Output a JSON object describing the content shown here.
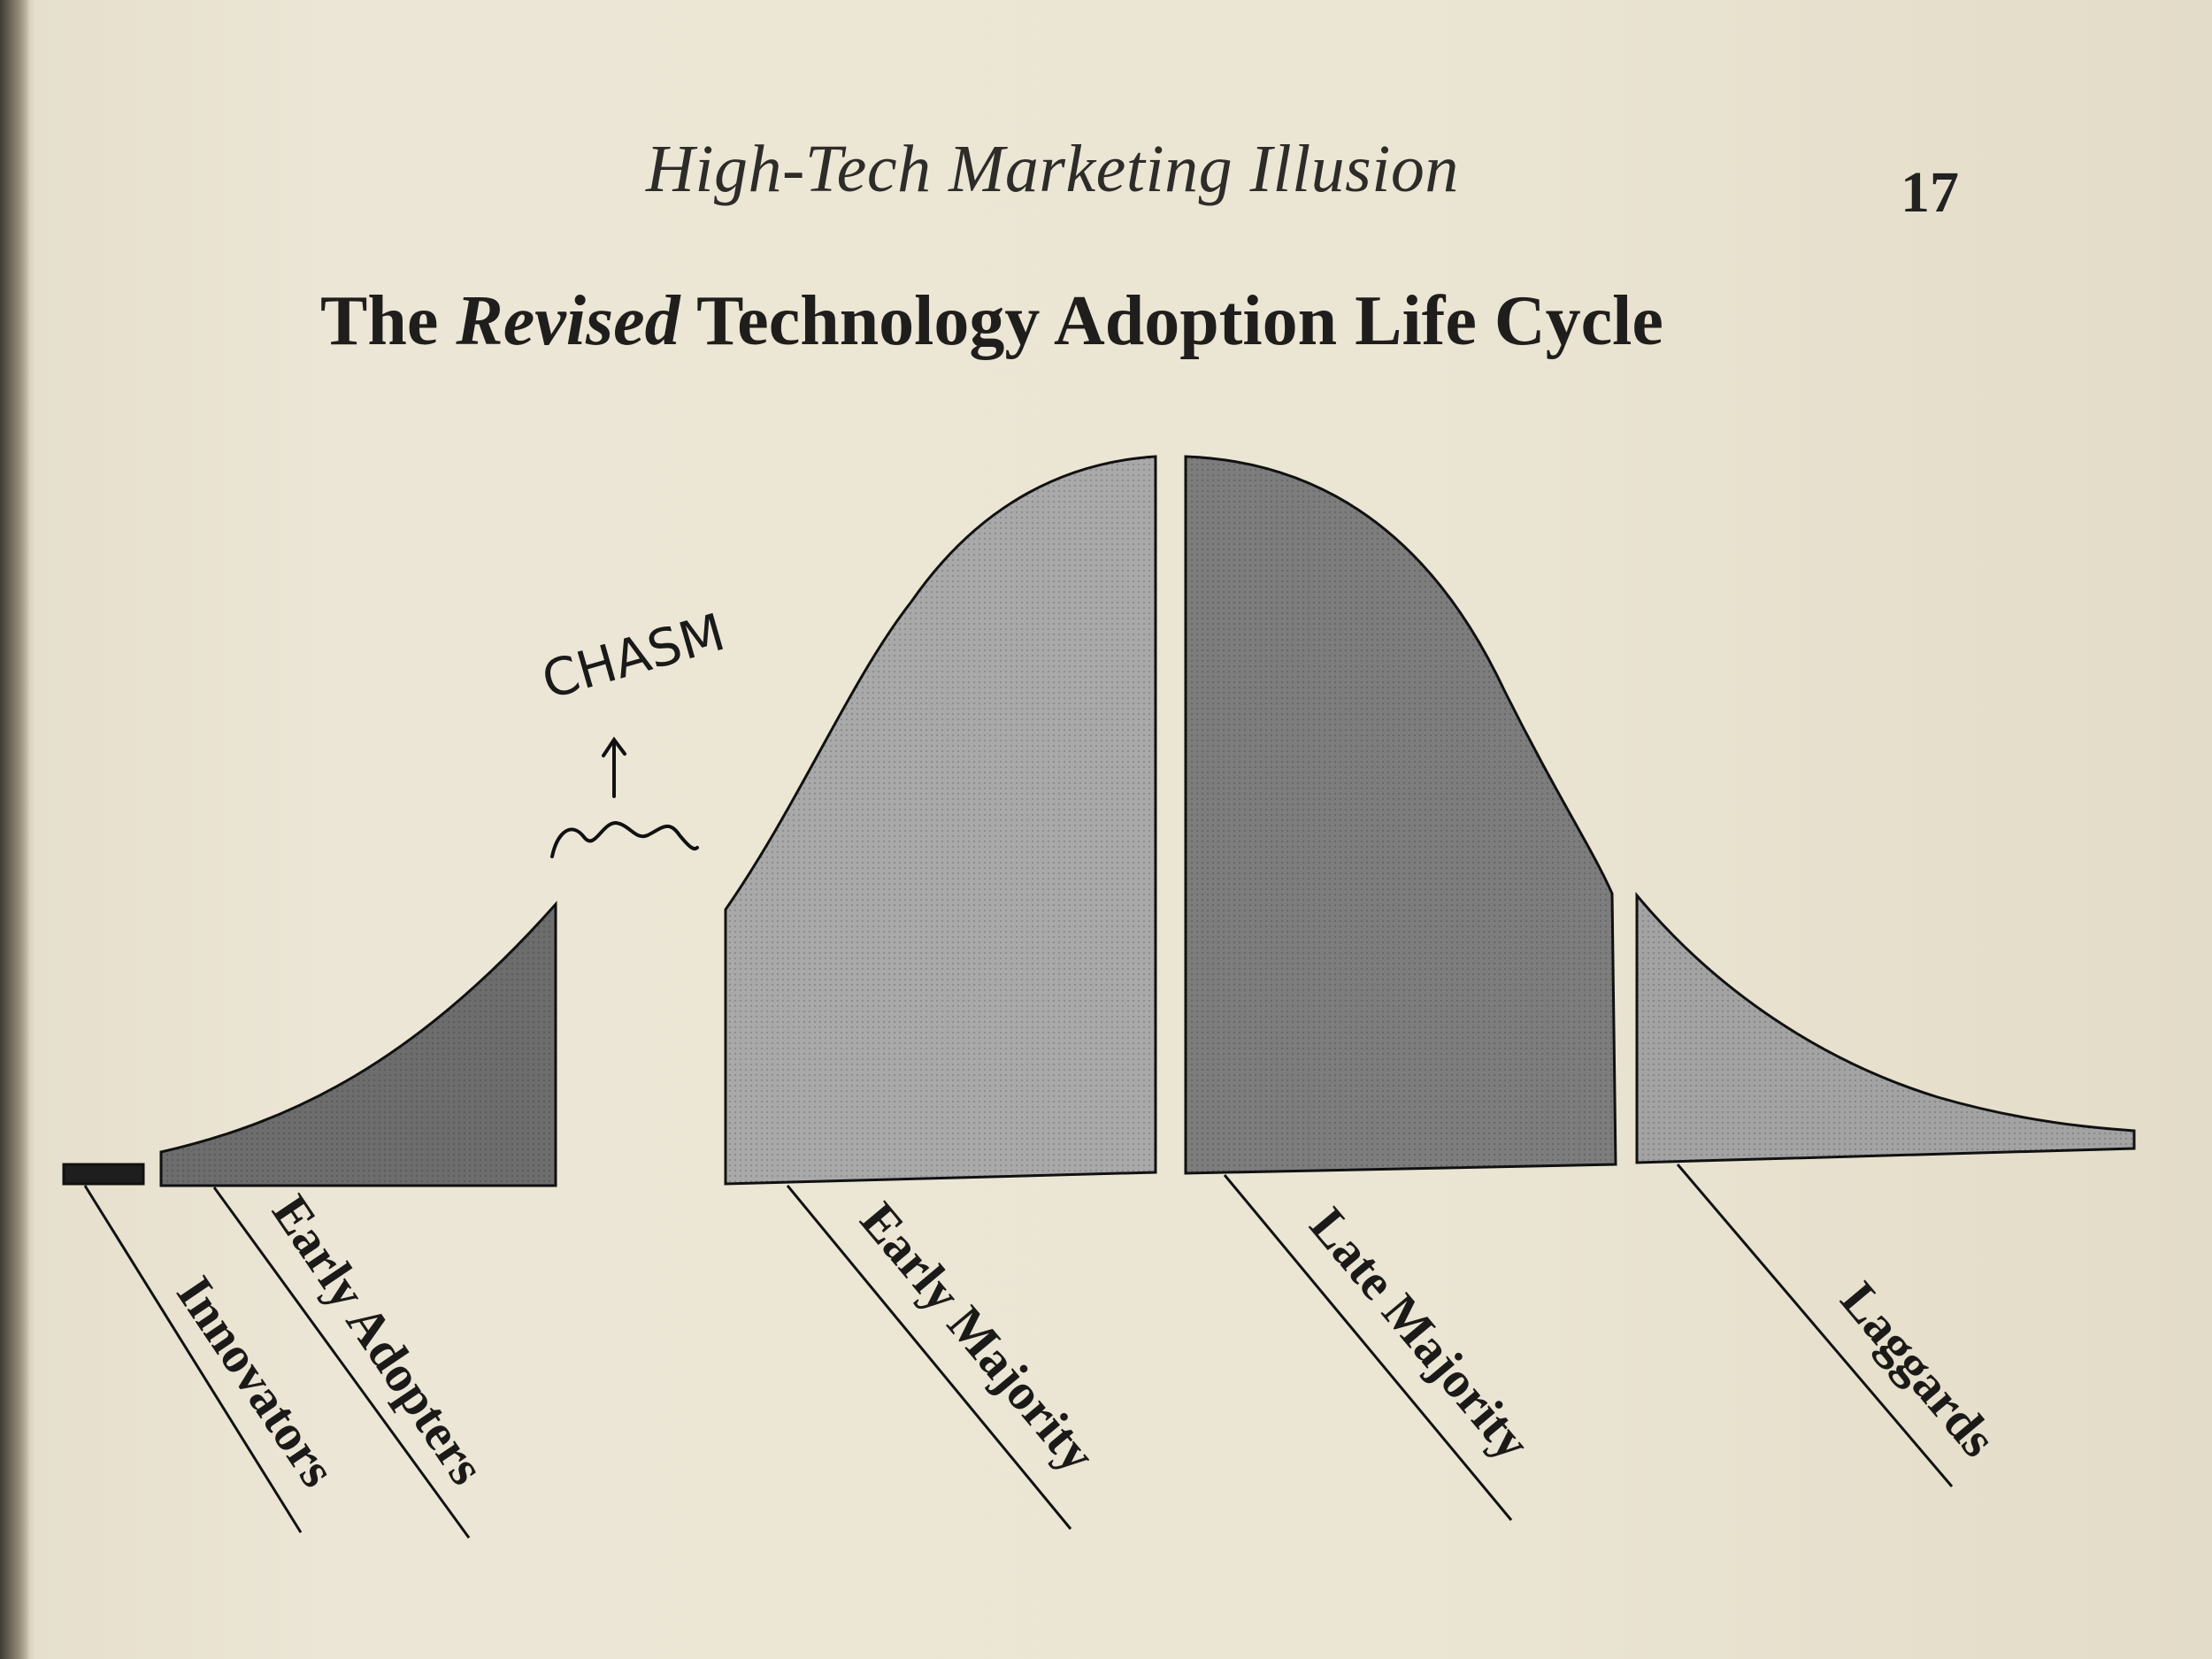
{
  "running_head": "High-Tech Marketing Illusion",
  "page_number": "17",
  "figure_title": {
    "before": "The ",
    "emphasis": "Revised",
    "after": " Technology Adoption Life Cycle"
  },
  "segments": [
    {
      "label": "Innovators",
      "fill": "#1e1e1e"
    },
    {
      "label": "Early Adopters",
      "fill": "#6d6d6d"
    },
    {
      "label": "Early Majority",
      "fill": "#a9a9a9"
    },
    {
      "label": "Late Majority",
      "fill": "#7d7d7d"
    },
    {
      "label": "Laggards",
      "fill": "#a3a3a3"
    }
  ],
  "handwritten_note": "CHASM"
}
